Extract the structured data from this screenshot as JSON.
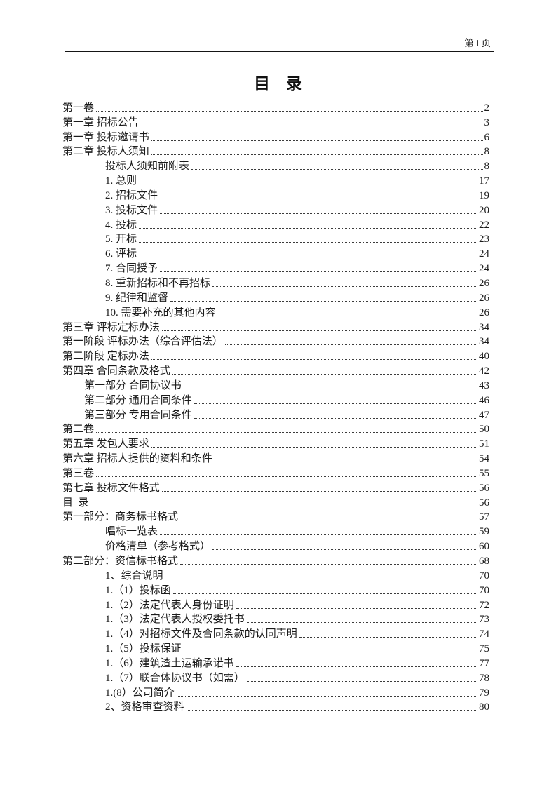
{
  "header": {
    "page_label": "第1页"
  },
  "title": "目　录",
  "toc": [
    {
      "text": "第一卷",
      "page": "2",
      "level": 0
    },
    {
      "text": "第一章 招标公告",
      "page": "3",
      "level": 0
    },
    {
      "text": "第一章 投标邀请书",
      "page": "6",
      "level": 0
    },
    {
      "text": "第二章 投标人须知",
      "page": "8",
      "level": 0
    },
    {
      "text": "投标人须知前附表",
      "page": "8",
      "level": 2
    },
    {
      "text": "1. 总则",
      "page": "17",
      "level": 2
    },
    {
      "text": "2. 招标文件",
      "page": "19",
      "level": 2
    },
    {
      "text": "3. 投标文件",
      "page": "20",
      "level": 2
    },
    {
      "text": "4. 投标",
      "page": "22",
      "level": 2
    },
    {
      "text": "5. 开标",
      "page": "23",
      "level": 2
    },
    {
      "text": "6. 评标",
      "page": "24",
      "level": 2
    },
    {
      "text": "7. 合同授予",
      "page": "24",
      "level": 2
    },
    {
      "text": "8. 重新招标和不再招标",
      "page": "26",
      "level": 2
    },
    {
      "text": "9. 纪律和监督",
      "page": "26",
      "level": 2
    },
    {
      "text": "10. 需要补充的其他内容",
      "page": "26",
      "level": 2
    },
    {
      "text": "第三章 评标定标办法",
      "page": "34",
      "level": 0
    },
    {
      "text": "第一阶段 评标办法（综合评估法）",
      "page": "34",
      "level": 0
    },
    {
      "text": "第二阶段 定标办法",
      "page": "40",
      "level": 0
    },
    {
      "text": "第四章 合同条款及格式",
      "page": "42",
      "level": 0
    },
    {
      "text": "第一部分 合同协议书",
      "page": "43",
      "level": 1
    },
    {
      "text": "第二部分 通用合同条件",
      "page": "46",
      "level": 1
    },
    {
      "text": "第三部分 专用合同条件",
      "page": "47",
      "level": 1
    },
    {
      "text": "第二卷",
      "page": "50",
      "level": 0
    },
    {
      "text": "第五章 发包人要求",
      "page": "51",
      "level": 0
    },
    {
      "text": "第六章 招标人提供的资料和条件",
      "page": "54",
      "level": 0
    },
    {
      "text": "第三卷",
      "page": "55",
      "level": 0
    },
    {
      "text": "第七章 投标文件格式",
      "page": "56",
      "level": 0
    },
    {
      "text": "目  录",
      "page": "56",
      "level": 0
    },
    {
      "text": "第一部分：商务标书格式",
      "page": "57",
      "level": 0
    },
    {
      "text": "唱标一览表",
      "page": "59",
      "level": 2
    },
    {
      "text": "价格清单（参考格式）",
      "page": "60",
      "level": 2
    },
    {
      "text": "第二部分：资信标书格式",
      "page": "68",
      "level": 0
    },
    {
      "text": "1、综合说明",
      "page": "70",
      "level": 2
    },
    {
      "text": "1.（1）投标函",
      "page": "70",
      "level": 2
    },
    {
      "text": "1.（2）法定代表人身份证明",
      "page": "72",
      "level": 2
    },
    {
      "text": "1.（3）法定代表人授权委托书",
      "page": "73",
      "level": 2
    },
    {
      "text": "1.（4）对招标文件及合同条款的认同声明",
      "page": "74",
      "level": 2
    },
    {
      "text": "1.（5）投标保证",
      "page": "75",
      "level": 2
    },
    {
      "text": "1.（6）建筑渣土运输承诺书",
      "page": "77",
      "level": 2
    },
    {
      "text": "1.（7）联合体协议书（如需）",
      "page": "78",
      "level": 2
    },
    {
      "text": "1.(8）公司简介",
      "page": "79",
      "level": 2
    },
    {
      "text": "2、资格审查资料",
      "page": "80",
      "level": 2
    }
  ]
}
